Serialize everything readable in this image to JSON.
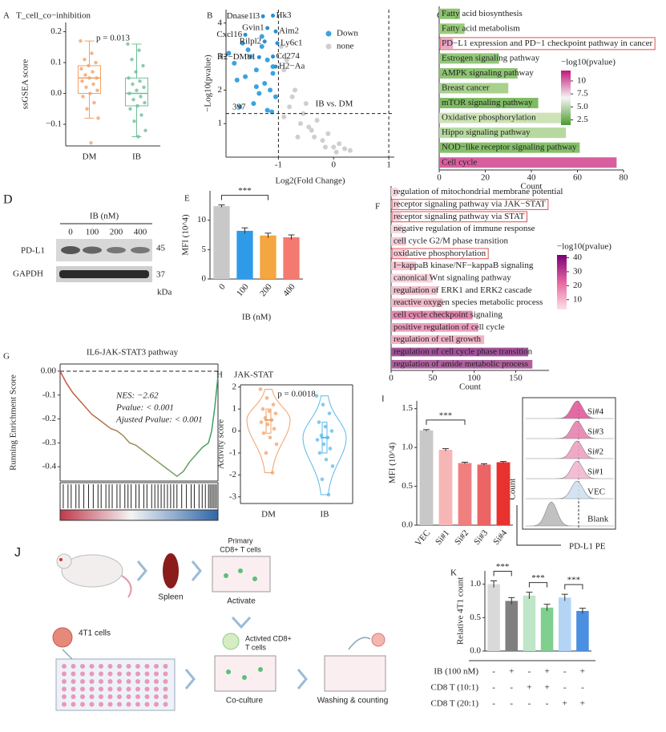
{
  "chart_data": [
    {
      "label": "A",
      "type": "box",
      "title": "T_cell_co−inhibition",
      "ylabel": "ssGSEA score",
      "annotation": "p = 0.013",
      "categories": [
        "DM",
        "IB"
      ],
      "colors": [
        "#f2a067",
        "#6fbf98"
      ],
      "q1": [
        0.0,
        -0.04
      ],
      "median": [
        0.05,
        0.0
      ],
      "q3": [
        0.09,
        0.05
      ],
      "whislo": [
        -0.08,
        -0.14
      ],
      "whishi": [
        0.17,
        0.16
      ],
      "points": [
        [
          0.17,
          0.13,
          0.11,
          0.1,
          0.09,
          0.08,
          0.07,
          0.06,
          0.05,
          0.05,
          0.04,
          0.03,
          0.02,
          0.01,
          0.0,
          -0.01,
          -0.03,
          -0.05,
          -0.08,
          -0.16
        ],
        [
          0.16,
          0.14,
          0.11,
          0.09,
          0.07,
          0.05,
          0.04,
          0.03,
          0.02,
          0.01,
          0.0,
          -0.01,
          -0.02,
          -0.03,
          -0.04,
          -0.05,
          -0.07,
          -0.09,
          -0.12,
          -0.14
        ]
      ],
      "ylim": [
        -0.17,
        0.23
      ],
      "yticks": [
        {
          "value": -0.1,
          "label": "−0.1"
        },
        {
          "value": 0,
          "label": "0.0"
        },
        {
          "value": 0.1,
          "label": "0.1"
        },
        {
          "value": 0.2,
          "label": "0.2"
        }
      ]
    },
    {
      "label": "B",
      "type": "volcano",
      "xlabel": "Log2(Fold Change)",
      "ylabel": "−Log10(pvalue)",
      "count_label": "397",
      "annotation": "IB vs. DM",
      "xlim": [
        -1.95,
        1.1
      ],
      "ylim": [
        0,
        4.4
      ],
      "xticks": [
        -1,
        0,
        1
      ],
      "yticks": [
        1,
        2,
        3,
        4
      ],
      "thresholds_x": [
        -1,
        1
      ],
      "threshold_y": 1.3,
      "legend": "upper right",
      "series": [
        {
          "name": "Down",
          "color": "#3aa3e0",
          "x": [
            -1.3,
            -1.5,
            -1.2,
            -1.4,
            -1.6,
            -1.1,
            -1.25,
            -1.8,
            -1.35,
            -1.15,
            -1.45,
            -1.7,
            -1.05,
            -1.2,
            -1.3,
            -1.55,
            -1.1,
            -1.4,
            -1.65,
            -1.9,
            -1.75,
            -1.12
          ],
          "y": [
            3.3,
            3.0,
            2.9,
            2.6,
            2.4,
            2.7,
            2.2,
            2.8,
            1.9,
            2.0,
            1.6,
            1.5,
            1.8,
            1.4,
            3.6,
            3.2,
            2.5,
            2.1,
            3.4,
            3.1,
            2.3,
            1.35
          ]
        },
        {
          "name": "none",
          "color": "#cfcfcf",
          "x": [
            -0.9,
            -0.7,
            -0.5,
            -0.3,
            -0.1,
            0.1,
            0.3,
            -0.8,
            -0.6,
            -0.4,
            -0.2,
            0.0,
            0.2,
            -0.95,
            -0.85,
            -0.75,
            -0.9,
            -0.65,
            -0.55,
            -0.45,
            -0.35,
            -0.15,
            0.05
          ],
          "y": [
            2.6,
            2.0,
            1.6,
            1.1,
            0.7,
            0.4,
            0.2,
            1.5,
            1.0,
            0.8,
            0.5,
            0.3,
            0.25,
            3.3,
            2.9,
            1.8,
            1.2,
            0.6,
            1.3,
            0.9,
            0.6,
            0.3,
            0.15
          ]
        }
      ],
      "genes": [
        {
          "name": "Dnase1l3",
          "x": -1.28,
          "y": 4.2,
          "color": "#222222"
        },
        {
          "name": "Hk3",
          "x": -1.1,
          "y": 4.22,
          "color": "#222222"
        },
        {
          "name": "Gvin1",
          "x": -1.2,
          "y": 3.85,
          "color": "#222222"
        },
        {
          "name": "Aim2",
          "x": -1.05,
          "y": 3.75,
          "color": "#222222"
        },
        {
          "name": "Cxcl16",
          "x": -1.6,
          "y": 3.65,
          "color": "#222222"
        },
        {
          "name": "Rilpl2",
          "x": -1.25,
          "y": 3.45,
          "color": "#222222"
        },
        {
          "name": "Ly6c1",
          "x": -1.02,
          "y": 3.4,
          "color": "#222222"
        },
        {
          "name": "H2−DMb1",
          "x": -1.35,
          "y": 2.98,
          "color": "#222222"
        },
        {
          "name": "Cd274",
          "x": -1.1,
          "y": 3.0,
          "color": "#e02020"
        },
        {
          "name": "H2−Aa",
          "x": -1.05,
          "y": 2.7,
          "color": "#222222"
        }
      ]
    },
    {
      "label": "C",
      "type": "hbar",
      "xlabel": "Count",
      "xlim": [
        0,
        80
      ],
      "xticks": [
        0,
        20,
        40,
        60,
        80
      ],
      "categories": [
        "Fatty acid biosynthesis",
        "Fatty acid metabolism",
        "PD−L1 expression and PD−1 checkpoint pathway in cancer",
        "Estrogen signaling pathway",
        "AMPK signaling pathway",
        "Breast cancer",
        "mTOR signaling pathway",
        "Oxidative phosphorylation",
        "Hippo signaling pathway",
        "NOD−like receptor signaling pathway",
        "Cell cycle"
      ],
      "values": [
        9,
        11,
        6,
        26,
        34,
        30,
        43,
        54,
        55,
        61,
        77
      ],
      "colors": [
        "#8cc56f",
        "#9bcb7c",
        "#e9a7c6",
        "#93c77a",
        "#8ec474",
        "#a8d18d",
        "#7fbb63",
        "#cde3b7",
        "#b6d99f",
        "#86bf6a",
        "#d85f9f"
      ],
      "highlight": [
        2
      ],
      "colorbar": {
        "title": "−log10(pvalue)",
        "clim": [
          1.5,
          12
        ],
        "colors": [
          "#4a9c2d",
          "#f5f5f5",
          "#c2177a"
        ],
        "ticks": [
          2.5,
          {
            "value": 5,
            "label": "5.0"
          },
          7.5,
          10
        ]
      }
    },
    {
      "label": "E",
      "type": "bar",
      "ylabel": "MFI (10^4)",
      "xlabel": "IB (nM)",
      "categories": [
        "0",
        "100",
        "200",
        "400"
      ],
      "values": [
        12.4,
        8.2,
        7.4,
        7.1
      ],
      "errors": [
        0.2,
        0.5,
        0.4,
        0.4
      ],
      "colors": [
        "#c8c8c8",
        "#2f9be8",
        "#f4a640",
        "#f47a70"
      ],
      "significance": [
        "***"
      ],
      "ylim": [
        0,
        15
      ],
      "yticks": [
        0,
        5,
        10
      ]
    },
    {
      "label": "F",
      "type": "hbar",
      "xlabel": "Count",
      "xlim": [
        0,
        190
      ],
      "xticks": [
        0,
        50,
        100,
        150
      ],
      "categories": [
        "regulation of mitochondrial membrane potential",
        "receptor signaling pathway via JAK−STAT",
        "receptor signaling pathway via STAT",
        "negative regulation of immune response",
        "cell cycle G2/M phase transition",
        "oxidative phosphorylation",
        "I−kappaB kinase/NF−kappaB signaling",
        "canonical Wnt signaling pathway",
        "regulation of ERK1 and ERK2 cascade",
        "reactive oxygen species metabolic process",
        "cell cycle checkpoint signaling",
        "positive regulation of cell cycle",
        "regulation of cell growth",
        "regulation of cell cycle phase transition",
        "regulation of amide metabolic process"
      ],
      "values": [
        8,
        10,
        12,
        14,
        18,
        20,
        30,
        50,
        55,
        62,
        98,
        105,
        112,
        165,
        170
      ],
      "colors": [
        "#f6d2dc",
        "#f7d6de",
        "#f6d0da",
        "#f8dbe2",
        "#f5ccd7",
        "#f5cdd8",
        "#f3c3d0",
        "#f6d3dd",
        "#f2c0ce",
        "#f0b8c8",
        "#e28ab0",
        "#ec9fbd",
        "#f0b4c6",
        "#a3519a",
        "#b0609f"
      ],
      "highlight": [
        1,
        2,
        5
      ],
      "colorbar": {
        "title": "−log10(pvalue)",
        "clim": [
          3,
          42
        ],
        "colors": [
          "#fde0e6",
          "#e766a0",
          "#7a0177"
        ],
        "ticks": [
          10,
          20,
          30,
          40
        ]
      }
    },
    {
      "label": "G",
      "type": "gsea",
      "title": "IL6-JAK-STAT3 pathway",
      "ylabel": "Running Enrichment Score",
      "annotations": [
        "NES: −2.62",
        "Pvalue: < 0.001",
        "Ajusted Pvalue: < 0.001"
      ],
      "x": [
        0,
        4,
        8,
        12,
        16,
        20,
        24,
        28,
        32,
        36,
        40,
        44,
        48,
        52,
        56,
        60,
        64,
        68,
        72,
        74,
        78,
        82,
        86,
        90,
        94,
        96,
        98,
        100
      ],
      "values": [
        0,
        -0.05,
        -0.09,
        -0.12,
        -0.15,
        -0.18,
        -0.2,
        -0.22,
        -0.24,
        -0.25,
        -0.27,
        -0.3,
        -0.31,
        -0.33,
        -0.35,
        -0.37,
        -0.39,
        -0.41,
        -0.43,
        -0.44,
        -0.42,
        -0.38,
        -0.35,
        -0.32,
        -0.3,
        -0.25,
        -0.15,
        -0.02
      ],
      "hits": [
        2,
        5,
        7,
        10,
        12,
        15,
        18,
        21,
        24,
        26,
        29,
        31,
        33,
        36,
        38,
        41,
        43,
        45,
        48,
        50,
        53,
        55,
        58,
        60,
        62,
        64,
        66,
        68,
        70,
        72,
        74,
        77,
        80,
        83,
        85,
        88,
        90,
        92,
        94,
        95,
        96,
        97,
        98,
        99
      ],
      "xlim": [
        0,
        100
      ],
      "ylim": [
        -0.46,
        0.03
      ],
      "yticks": [
        {
          "value": 0,
          "label": "0.00"
        },
        -0.1,
        -0.2,
        -0.3,
        -0.4
      ]
    },
    {
      "label": "H",
      "type": "violin",
      "title": "JAK-STAT",
      "ylabel": "Activity score",
      "annotation": "p = 0.0018",
      "categories": [
        "DM",
        "IB"
      ],
      "colors": [
        "#f2a067",
        "#5bb8e8"
      ],
      "min": [
        -1.9,
        -2.9
      ],
      "q1": [
        -0.1,
        -1.0
      ],
      "median": [
        0.5,
        -0.3
      ],
      "q3": [
        1.0,
        0.4
      ],
      "max": [
        1.9,
        1.6
      ],
      "points": [
        [
          1.9,
          1.5,
          1.2,
          1.0,
          0.9,
          0.8,
          0.6,
          0.5,
          0.4,
          0.3,
          0.1,
          -0.1,
          -0.3,
          -0.6,
          -1.0,
          -1.9
        ],
        [
          1.6,
          1.2,
          0.8,
          0.4,
          0.2,
          0.0,
          -0.2,
          -0.3,
          -0.4,
          -0.6,
          -0.8,
          -1.0,
          -1.3,
          -1.6,
          -2.2,
          -2.9
        ]
      ],
      "ylim": [
        -3.3,
        2.1
      ],
      "yticks": [
        -3,
        -2,
        -1,
        0,
        1,
        2
      ]
    },
    {
      "label": "I",
      "type": "bar",
      "ylabel": "MFI (10^4)",
      "categories": [
        "VEC",
        "Si#1",
        "Si#2",
        "Si#3",
        "Si#4"
      ],
      "values": [
        1.22,
        0.97,
        0.8,
        0.78,
        0.81
      ],
      "errors": [
        0.01,
        0.015,
        0.01,
        0.01,
        0.01
      ],
      "colors": [
        "#c8c8c8",
        "#f7b6b6",
        "#f08080",
        "#ec6464",
        "#e8322e"
      ],
      "significance": [
        "***"
      ],
      "ylim": [
        0,
        1.6
      ],
      "yticks": [
        {
          "value": 0,
          "label": "0.0"
        },
        {
          "value": 0.5,
          "label": "0.5"
        },
        {
          "value": 1,
          "label": "1.0"
        },
        {
          "value": 1.5,
          "label": "1.5"
        }
      ]
    },
    {
      "label": "K",
      "type": "bar",
      "ylabel": "Relative 4T1 count",
      "values": [
        1.0,
        0.75,
        0.83,
        0.65,
        0.8,
        0.6
      ],
      "errors": [
        0.05,
        0.05,
        0.05,
        0.05,
        0.05,
        0.04
      ],
      "colors": [
        "#d9d9d9",
        "#7f7f7f",
        "#bfe6c8",
        "#7fcf8f",
        "#b3d4f5",
        "#4a8fe0"
      ],
      "significance": [
        "***",
        "***",
        "***"
      ],
      "ylim": [
        0,
        1.2
      ],
      "yticks": [
        {
          "value": 0,
          "label": "0.0"
        },
        {
          "value": 0.5,
          "label": "0.5"
        },
        {
          "value": 1,
          "label": "1.0"
        }
      ],
      "table": {
        "rows": [
          {
            "label": "IB (100 nM)",
            "cells": [
              "-",
              "+",
              "-",
              "+",
              "-",
              "+"
            ]
          },
          {
            "label": "CD8 T (10:1)",
            "cells": [
              "-",
              "-",
              "+",
              "+",
              "-",
              "-"
            ]
          },
          {
            "label": "CD8 T (20:1)",
            "cells": [
              "-",
              "-",
              "-",
              "-",
              "+",
              "+"
            ]
          }
        ]
      }
    }
  ],
  "blot": {
    "label": "D",
    "title": "IB (nM)",
    "lanes": [
      "0",
      "100",
      "200",
      "400"
    ],
    "rows": [
      {
        "name": "PD-L1",
        "kda": "45"
      },
      {
        "name": "GAPDH",
        "kda": "37"
      }
    ],
    "unit": "kDa"
  },
  "flow": {
    "ylabel": "Count",
    "xlabel": "PD-L1 PE",
    "tracks": [
      "Si#4",
      "Si#3",
      "Si#2",
      "Si#1",
      "VEC",
      "Blank"
    ]
  },
  "diagram": {
    "label": "J",
    "primary_cells": [
      "Primary",
      "CD8+ T cells"
    ],
    "spleen": "Spleen",
    "activate": "Activate",
    "tumor_cells": "4T1 cells",
    "activated_cells": [
      "Activted CD8+",
      "T cells"
    ],
    "coculture": "Co-culture",
    "washing": "Washing & counting"
  }
}
